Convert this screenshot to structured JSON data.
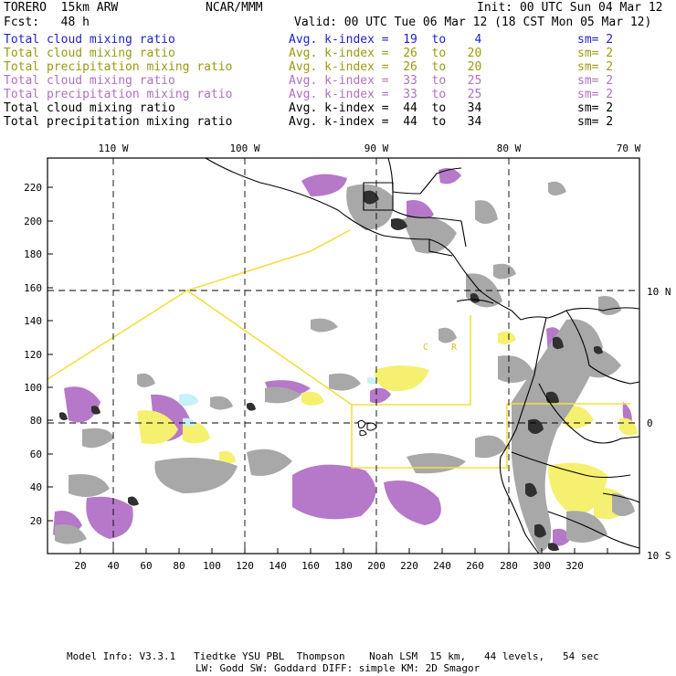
{
  "header": {
    "left1": "TORERO  15km ARW",
    "center1": "NCAR/MMM",
    "right1": "Init: 00 UTC Sun 04 Mar 12",
    "left2": "Fcst:   48 h",
    "right2": "Valid: 00 UTC Tue 06 Mar 12 (18 CST Mon 05 Mar 12)"
  },
  "legend": [
    {
      "field": "Total cloud mixing ratio",
      "avg": "Avg. k-index =  19  to    4",
      "sm": "sm= 2",
      "color": "#1f1fd0"
    },
    {
      "field": "Total cloud mixing ratio",
      "avg": "Avg. k-index =  26  to   20",
      "sm": "sm= 2",
      "color": "#9a9a10"
    },
    {
      "field": "Total precipitation mixing ratio",
      "avg": "Avg. k-index =  26  to   20",
      "sm": "sm= 2",
      "color": "#9a9a10"
    },
    {
      "field": "Total cloud mixing ratio",
      "avg": "Avg. k-index =  33  to   25",
      "sm": "sm= 2",
      "color": "#b070c0"
    },
    {
      "field": "Total precipitation mixing ratio",
      "avg": "Avg. k-index =  33  to   25",
      "sm": "sm= 2",
      "color": "#b070c0"
    },
    {
      "field": "Total cloud mixing ratio",
      "avg": "Avg. k-index =  44  to   34",
      "sm": "sm= 2",
      "color": "#000000"
    },
    {
      "field": "Total precipitation mixing ratio",
      "avg": "Avg. k-index =  44  to   34",
      "sm": "sm= 2",
      "color": "#000000"
    }
  ],
  "map": {
    "lon_labels": [
      "110 W",
      "100 W",
      "90 W",
      "80 W",
      "70 W"
    ],
    "lat_labels": [
      "10 N",
      "0",
      "10 S"
    ],
    "x_ticks": [
      "20",
      "40",
      "60",
      "80",
      "100",
      "120",
      "140",
      "160",
      "180",
      "200",
      "220",
      "240",
      "260",
      "280",
      "300",
      "320"
    ],
    "y_ticks": [
      "20",
      "40",
      "60",
      "80",
      "100",
      "120",
      "140",
      "160",
      "180",
      "200",
      "220"
    ],
    "colors": {
      "coast": "#000000",
      "grid": "#000000",
      "box": "#f0e040",
      "yellow": "#f5f070",
      "purple": "#b678c8",
      "gray": "#a8a8a8",
      "dark": "#303030",
      "cyan": "#c8f0f8"
    },
    "annotations": [
      "C",
      "R"
    ]
  },
  "footer": {
    "line1": "Model Info: V3.3.1   Tiedtke YSU PBL  Thompson    Noah LSM  15 km,   44 levels,   54 sec",
    "line2": "LW: Godd SW: Goddard DIFF: simple KM: 2D Smagor"
  }
}
